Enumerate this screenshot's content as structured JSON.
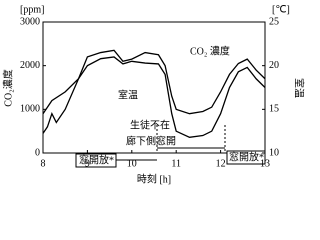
{
  "chart_data": {
    "type": "line",
    "y_unit": "[ppm]",
    "y2_unit": "[℃]",
    "ylabel": "CO₂濃度",
    "y2label": "室温",
    "xlabel": "時刻 [h]",
    "annotations": [
      "CO₂ 濃度",
      "室温",
      "生徒不在",
      "廊下側窓開",
      "窓開放*",
      "窓開放*"
    ],
    "xlim": [
      8,
      13
    ],
    "xticks": [
      8,
      9,
      10,
      11,
      12,
      13
    ],
    "ylim": [
      0,
      3000
    ],
    "yticks": [
      0,
      1000,
      2000,
      3000
    ],
    "y2lim": [
      10,
      25
    ],
    "y2ticks": [
      10,
      15,
      20,
      25
    ],
    "series": [
      {
        "name": "CO₂ 濃度",
        "color": "#000000",
        "x": [
          8,
          8.1,
          8.2,
          8.3,
          8.5,
          8.8,
          9,
          9.3,
          9.6,
          9.8,
          10,
          10.3,
          10.6,
          10.75,
          10.9,
          11,
          11.3,
          11.6,
          11.8,
          12,
          12.2,
          12.4,
          12.6,
          12.8,
          13
        ],
        "values": [
          450,
          600,
          900,
          700,
          1000,
          1700,
          2200,
          2300,
          2350,
          2100,
          2150,
          2300,
          2250,
          2000,
          1300,
          1000,
          900,
          950,
          1050,
          1400,
          1800,
          2050,
          2150,
          1900,
          1700
        ]
      },
      {
        "name": "室温",
        "color": "#000000",
        "axis": "y2",
        "x": [
          8,
          8.2,
          8.5,
          8.8,
          9,
          9.3,
          9.6,
          9.8,
          10,
          10.3,
          10.6,
          10.75,
          10.9,
          11,
          11.3,
          11.6,
          11.8,
          12,
          12.2,
          12.4,
          12.6,
          12.8,
          13
        ],
        "values": [
          14.5,
          16,
          17,
          18.5,
          20,
          20.8,
          21,
          20.2,
          20.5,
          20.3,
          20.2,
          19,
          14.5,
          12.5,
          11.8,
          12,
          12.5,
          14.5,
          17.5,
          19.3,
          19.8,
          18.5,
          17.5
        ]
      }
    ]
  }
}
